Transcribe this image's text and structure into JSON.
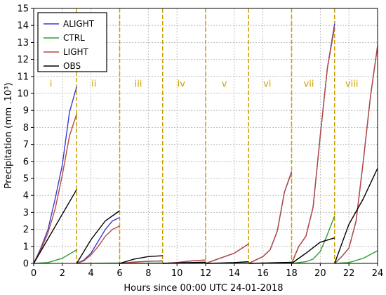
{
  "chart_data": {
    "type": "line",
    "title": "",
    "xlabel": "Hours since 00:00 UTC 24-01-2018",
    "ylabel": "Precipitation (mm .10³)",
    "xlim": [
      0,
      24
    ],
    "ylim": [
      0,
      15
    ],
    "xticks": [
      0,
      2,
      4,
      6,
      8,
      10,
      12,
      14,
      16,
      18,
      20,
      22,
      24
    ],
    "yticks": [
      0,
      1,
      2,
      3,
      4,
      5,
      6,
      7,
      8,
      9,
      10,
      11,
      12,
      13,
      14,
      15
    ],
    "grid": true,
    "legend_position": "top-left",
    "window_boundaries": [
      3,
      6,
      9,
      12,
      15,
      18,
      21
    ],
    "window_boundary_color": "#c8a000",
    "windows": [
      {
        "label": "i",
        "x": 1.2
      },
      {
        "label": "ii",
        "x": 4.2
      },
      {
        "label": "iii",
        "x": 7.3
      },
      {
        "label": "iv",
        "x": 10.3
      },
      {
        "label": "v",
        "x": 13.3
      },
      {
        "label": "vi",
        "x": 16.3
      },
      {
        "label": "vii",
        "x": 19.2
      },
      {
        "label": "viii",
        "x": 22.2
      }
    ],
    "series": [
      {
        "name": "ALIGHT",
        "color": "#3a3ad6",
        "segments": [
          [
            [
              0,
              0
            ],
            [
              0.5,
              0.9
            ],
            [
              1,
              2.0
            ],
            [
              1.5,
              3.8
            ],
            [
              2,
              5.8
            ],
            [
              2.5,
              8.9
            ],
            [
              3,
              10.4
            ]
          ],
          [
            [
              3,
              0
            ],
            [
              3.5,
              0.2
            ],
            [
              4,
              0.6
            ],
            [
              4.5,
              1.3
            ],
            [
              5,
              2.0
            ],
            [
              5.5,
              2.5
            ],
            [
              6,
              2.7
            ]
          ],
          [
            [
              6,
              0
            ],
            [
              7,
              0.08
            ],
            [
              8,
              0.13
            ],
            [
              9,
              0.15
            ]
          ],
          [
            [
              9,
              0
            ],
            [
              10,
              0.05
            ],
            [
              11,
              0.15
            ],
            [
              12,
              0.2
            ]
          ],
          [
            [
              12,
              0
            ],
            [
              13,
              0.3
            ],
            [
              14,
              0.6
            ],
            [
              15,
              1.15
            ]
          ],
          [
            [
              15,
              0
            ],
            [
              16,
              0.4
            ],
            [
              16.5,
              0.8
            ],
            [
              17,
              1.9
            ],
            [
              17.5,
              4.2
            ],
            [
              18,
              5.4
            ]
          ],
          [
            [
              18,
              0
            ],
            [
              18.5,
              1.0
            ],
            [
              19,
              1.6
            ],
            [
              19.5,
              3.3
            ],
            [
              20,
              7.5
            ],
            [
              20.5,
              11.5
            ],
            [
              21,
              14.1
            ]
          ],
          [
            [
              21,
              0
            ],
            [
              21.5,
              0.4
            ],
            [
              22,
              0.9
            ],
            [
              22.5,
              2.5
            ],
            [
              23,
              6.0
            ],
            [
              23.5,
              9.8
            ],
            [
              24,
              12.8
            ]
          ]
        ]
      },
      {
        "name": "CTRL",
        "color": "#2e9e2e",
        "segments": [
          [
            [
              0,
              0
            ],
            [
              1,
              0.05
            ],
            [
              2,
              0.3
            ],
            [
              3,
              0.8
            ]
          ],
          [
            [
              3,
              0
            ],
            [
              6,
              0.02
            ]
          ],
          [
            [
              6,
              0
            ],
            [
              9,
              0.02
            ]
          ],
          [
            [
              9,
              0
            ],
            [
              12,
              0.02
            ]
          ],
          [
            [
              12,
              0
            ],
            [
              15,
              0.02
            ]
          ],
          [
            [
              15,
              0
            ],
            [
              18,
              0.03
            ]
          ],
          [
            [
              18,
              0
            ],
            [
              19,
              0.1
            ],
            [
              19.5,
              0.25
            ],
            [
              20,
              0.7
            ],
            [
              20.5,
              1.7
            ],
            [
              21,
              2.8
            ]
          ],
          [
            [
              21,
              0
            ],
            [
              22,
              0.05
            ],
            [
              23,
              0.3
            ],
            [
              24,
              0.75
            ]
          ]
        ]
      },
      {
        "name": "LIGHT",
        "color": "#b84a3a",
        "segments": [
          [
            [
              0,
              0
            ],
            [
              0.5,
              0.8
            ],
            [
              1,
              1.8
            ],
            [
              1.5,
              3.2
            ],
            [
              2,
              5.2
            ],
            [
              2.5,
              7.5
            ],
            [
              3,
              8.8
            ]
          ],
          [
            [
              3,
              0
            ],
            [
              3.5,
              0.15
            ],
            [
              4,
              0.5
            ],
            [
              4.5,
              1.0
            ],
            [
              5,
              1.6
            ],
            [
              5.5,
              2.0
            ],
            [
              6,
              2.2
            ]
          ],
          [
            [
              6,
              0
            ],
            [
              7,
              0.07
            ],
            [
              8,
              0.12
            ],
            [
              9,
              0.14
            ]
          ],
          [
            [
              9,
              0
            ],
            [
              10,
              0.05
            ],
            [
              11,
              0.14
            ],
            [
              12,
              0.2
            ]
          ],
          [
            [
              12,
              0
            ],
            [
              13,
              0.3
            ],
            [
              14,
              0.6
            ],
            [
              15,
              1.15
            ]
          ],
          [
            [
              15,
              0
            ],
            [
              16,
              0.4
            ],
            [
              16.5,
              0.8
            ],
            [
              17,
              1.9
            ],
            [
              17.5,
              4.2
            ],
            [
              18,
              5.35
            ]
          ],
          [
            [
              18,
              0
            ],
            [
              18.5,
              1.0
            ],
            [
              19,
              1.6
            ],
            [
              19.5,
              3.3
            ],
            [
              20,
              7.5
            ],
            [
              20.5,
              11.5
            ],
            [
              21,
              13.9
            ]
          ],
          [
            [
              21,
              0
            ],
            [
              21.5,
              0.4
            ],
            [
              22,
              0.9
            ],
            [
              22.5,
              2.5
            ],
            [
              23,
              6.0
            ],
            [
              23.5,
              9.8
            ],
            [
              24,
              12.8
            ]
          ]
        ]
      },
      {
        "name": "OBS",
        "color": "#000000",
        "segments": [
          [
            [
              0,
              0
            ],
            [
              3,
              4.35
            ]
          ],
          [
            [
              3,
              0
            ],
            [
              4,
              1.4
            ],
            [
              5,
              2.5
            ],
            [
              6,
              3.1
            ]
          ],
          [
            [
              6,
              0
            ],
            [
              7,
              0.25
            ],
            [
              8,
              0.4
            ],
            [
              9,
              0.45
            ]
          ],
          [
            [
              9,
              0
            ],
            [
              10,
              0.03
            ],
            [
              11,
              0.05
            ],
            [
              12,
              0.07
            ]
          ],
          [
            [
              12,
              0
            ],
            [
              13,
              0.02
            ],
            [
              14,
              0.05
            ],
            [
              15,
              0.1
            ]
          ],
          [
            [
              15,
              0
            ],
            [
              16,
              0.02
            ],
            [
              17,
              0.04
            ],
            [
              18,
              0.06
            ]
          ],
          [
            [
              18,
              0
            ],
            [
              19,
              0.6
            ],
            [
              20,
              1.25
            ],
            [
              21,
              1.5
            ]
          ],
          [
            [
              21,
              0
            ],
            [
              22,
              2.3
            ],
            [
              23,
              3.8
            ],
            [
              24,
              5.6
            ]
          ]
        ]
      }
    ]
  }
}
